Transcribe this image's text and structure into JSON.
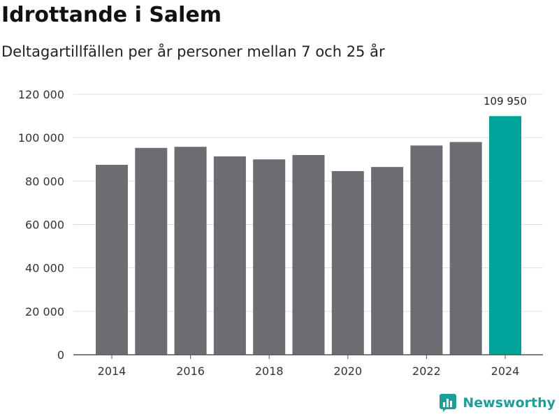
{
  "header": {
    "title": "Idrottande i Salem",
    "subtitle": "Deltagartillfällen per år personer mellan 7 och 25 år"
  },
  "brand": {
    "name": "Newsworthy",
    "icon": "bar-chart-logo-icon",
    "color": "#1f9e97"
  },
  "colors": {
    "bar": "#6d6c72",
    "highlight": "#00a39a",
    "grid": "#dddddd",
    "axis": "#555555",
    "text": "#333333"
  },
  "chart_data": {
    "type": "bar",
    "title": "Idrottande i Salem",
    "subtitle": "Deltagartillfällen per år personer mellan 7 och 25 år",
    "xlabel": "",
    "ylabel": "",
    "categories": [
      "2014",
      "2015",
      "2016",
      "2017",
      "2018",
      "2019",
      "2020",
      "2021",
      "2022",
      "2023",
      "2024"
    ],
    "values": [
      87500,
      95300,
      95800,
      91400,
      90000,
      92000,
      84600,
      86500,
      96400,
      98000,
      109950
    ],
    "highlight_index": 10,
    "ylim": [
      0,
      120000
    ],
    "yticks": [
      0,
      20000,
      40000,
      60000,
      80000,
      100000,
      120000
    ],
    "ytick_labels": [
      "0",
      "20 000",
      "40 000",
      "60 000",
      "80 000",
      "100 000",
      "120 000"
    ],
    "xtick_labels": [
      "2014",
      "2016",
      "2018",
      "2020",
      "2022",
      "2024"
    ],
    "data_labels": [
      {
        "index": 10,
        "text": "109 950"
      }
    ],
    "grid": true,
    "legend": "none"
  }
}
